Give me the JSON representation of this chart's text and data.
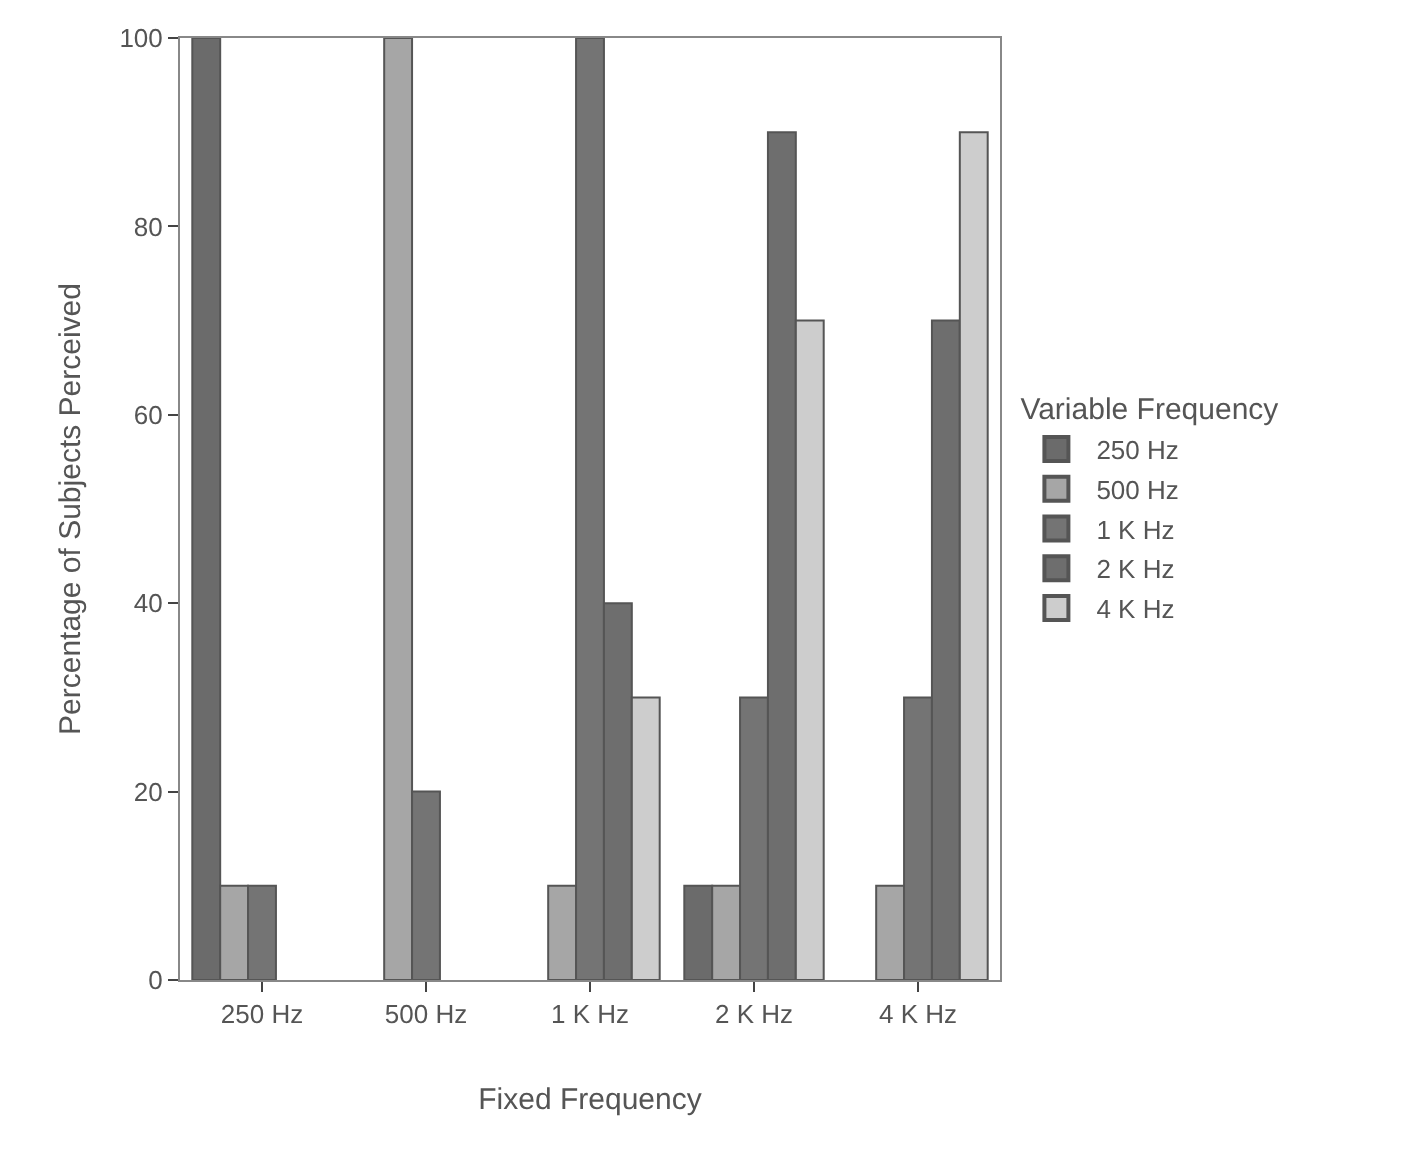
{
  "chart_data": {
    "type": "bar",
    "xlabel": "Fixed Frequency",
    "ylabel": "Percentage of Subjects Perceived",
    "legend_title": "Variable Frequency",
    "categories": [
      "250 Hz",
      "500 Hz",
      "1 K Hz",
      "2 K Hz",
      "4 K Hz"
    ],
    "series": [
      {
        "name": "250 Hz",
        "color": "#6b6b6b",
        "values": [
          100,
          0,
          0,
          10,
          0
        ]
      },
      {
        "name": "500 Hz",
        "color": "#a6a6a6",
        "values": [
          10,
          100,
          10,
          10,
          10
        ]
      },
      {
        "name": "1 K Hz",
        "color": "#747474",
        "values": [
          10,
          20,
          100,
          30,
          30
        ]
      },
      {
        "name": "2 K Hz",
        "color": "#6e6e6e",
        "values": [
          0,
          0,
          40,
          90,
          70
        ]
      },
      {
        "name": "4 K Hz",
        "color": "#cdcdcd",
        "values": [
          0,
          0,
          30,
          70,
          90
        ]
      }
    ],
    "ylim": [
      0,
      100
    ],
    "yticks": [
      0,
      20,
      40,
      60,
      80,
      100
    ],
    "legend": "right"
  }
}
